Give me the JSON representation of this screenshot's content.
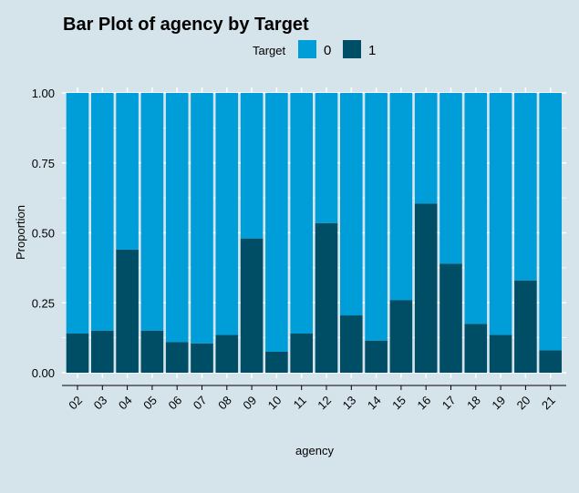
{
  "colors": {
    "background": "#d5e4eb",
    "gridline": "#ffffff",
    "series_0": "#009ed8",
    "series_1": "#004d66",
    "axis_line": "#000000"
  },
  "chart_data": {
    "type": "bar",
    "stacked": true,
    "title": "Bar Plot of agency by Target",
    "xlabel": "agency",
    "ylabel": "Proportion",
    "ylim": [
      0,
      1
    ],
    "yticks": [
      "0.00",
      "0.25",
      "0.50",
      "0.75",
      "1.00"
    ],
    "ytick_values": [
      0,
      0.25,
      0.5,
      0.75,
      1.0
    ],
    "grid": true,
    "legend": {
      "title": "Target",
      "position": "top",
      "entries": [
        "0",
        "1"
      ]
    },
    "categories": [
      "02",
      "03",
      "04",
      "05",
      "06",
      "07",
      "08",
      "09",
      "10",
      "11",
      "12",
      "13",
      "14",
      "15",
      "16",
      "17",
      "18",
      "19",
      "20",
      "21"
    ],
    "series": [
      {
        "name": "0",
        "values": [
          0.86,
          0.85,
          0.56,
          0.85,
          0.89,
          0.895,
          0.865,
          0.52,
          0.925,
          0.86,
          0.465,
          0.795,
          0.885,
          0.74,
          0.395,
          0.61,
          0.825,
          0.865,
          0.67,
          0.92
        ]
      },
      {
        "name": "1",
        "values": [
          0.14,
          0.15,
          0.44,
          0.15,
          0.11,
          0.105,
          0.135,
          0.48,
          0.075,
          0.14,
          0.535,
          0.205,
          0.115,
          0.26,
          0.605,
          0.39,
          0.175,
          0.135,
          0.33,
          0.08
        ]
      }
    ]
  }
}
